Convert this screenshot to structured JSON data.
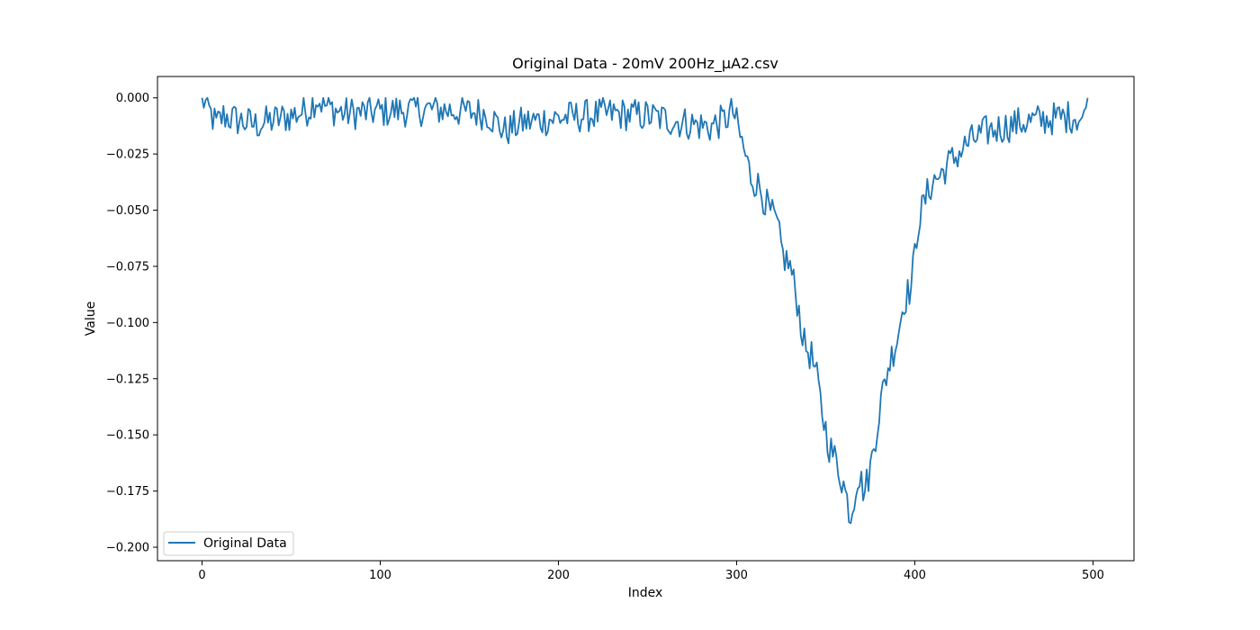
{
  "chart_data": {
    "type": "line",
    "title": "Original Data - 20mV 200Hz_µA2.csv",
    "xlabel": "Index",
    "ylabel": "Value",
    "xlim": [
      -25,
      523
    ],
    "ylim": [
      -0.206,
      0.0095
    ],
    "xticks": [
      0,
      100,
      200,
      300,
      400,
      500
    ],
    "xtick_labels": [
      "0",
      "100",
      "200",
      "300",
      "400",
      "500"
    ],
    "yticks": [
      0.0,
      -0.025,
      -0.05,
      -0.075,
      -0.1,
      -0.125,
      -0.15,
      -0.175,
      -0.2
    ],
    "ytick_labels": [
      "0.000",
      "−0.025",
      "−0.050",
      "−0.075",
      "−0.100",
      "−0.125",
      "−0.150",
      "−0.175",
      "−0.200"
    ],
    "grid": false,
    "legend_position": "lower-left",
    "series": [
      {
        "name": "Original Data",
        "color": "#1f77b4",
        "anchors": [
          [
            0,
            0.0
          ],
          [
            4,
            -0.006
          ],
          [
            8,
            -0.012
          ],
          [
            12,
            -0.008
          ],
          [
            20,
            -0.01
          ],
          [
            30,
            -0.012
          ],
          [
            40,
            -0.01
          ],
          [
            50,
            -0.008
          ],
          [
            60,
            -0.005
          ],
          [
            64,
            0.0
          ],
          [
            70,
            -0.004
          ],
          [
            80,
            -0.007
          ],
          [
            100,
            -0.006
          ],
          [
            130,
            -0.005
          ],
          [
            160,
            -0.007
          ],
          [
            170,
            -0.015
          ],
          [
            180,
            -0.011
          ],
          [
            200,
            -0.009
          ],
          [
            230,
            -0.007
          ],
          [
            250,
            -0.008
          ],
          [
            270,
            -0.011
          ],
          [
            285,
            -0.013
          ],
          [
            293,
            -0.01
          ],
          [
            298,
            -0.006
          ],
          [
            303,
            -0.02
          ],
          [
            308,
            -0.035
          ],
          [
            313,
            -0.04
          ],
          [
            318,
            -0.05
          ],
          [
            322,
            -0.055
          ],
          [
            326,
            -0.07
          ],
          [
            330,
            -0.075
          ],
          [
            334,
            -0.09
          ],
          [
            338,
            -0.11
          ],
          [
            342,
            -0.115
          ],
          [
            345,
            -0.125
          ],
          [
            348,
            -0.14
          ],
          [
            352,
            -0.155
          ],
          [
            356,
            -0.162
          ],
          [
            360,
            -0.172
          ],
          [
            364,
            -0.186
          ],
          [
            368,
            -0.168
          ],
          [
            372,
            -0.175
          ],
          [
            375,
            -0.165
          ],
          [
            378,
            -0.15
          ],
          [
            381,
            -0.135
          ],
          [
            385,
            -0.12
          ],
          [
            390,
            -0.107
          ],
          [
            394,
            -0.09
          ],
          [
            398,
            -0.084
          ],
          [
            402,
            -0.055
          ],
          [
            406,
            -0.045
          ],
          [
            410,
            -0.037
          ],
          [
            414,
            -0.035
          ],
          [
            418,
            -0.03
          ],
          [
            422,
            -0.027
          ],
          [
            430,
            -0.02
          ],
          [
            440,
            -0.015
          ],
          [
            450,
            -0.013
          ],
          [
            460,
            -0.011
          ],
          [
            470,
            -0.01
          ],
          [
            480,
            -0.009
          ],
          [
            490,
            -0.008
          ],
          [
            495,
            -0.01
          ],
          [
            497,
            0.0
          ]
        ],
        "noise_amplitude": 0.0075,
        "length": 498
      }
    ]
  }
}
